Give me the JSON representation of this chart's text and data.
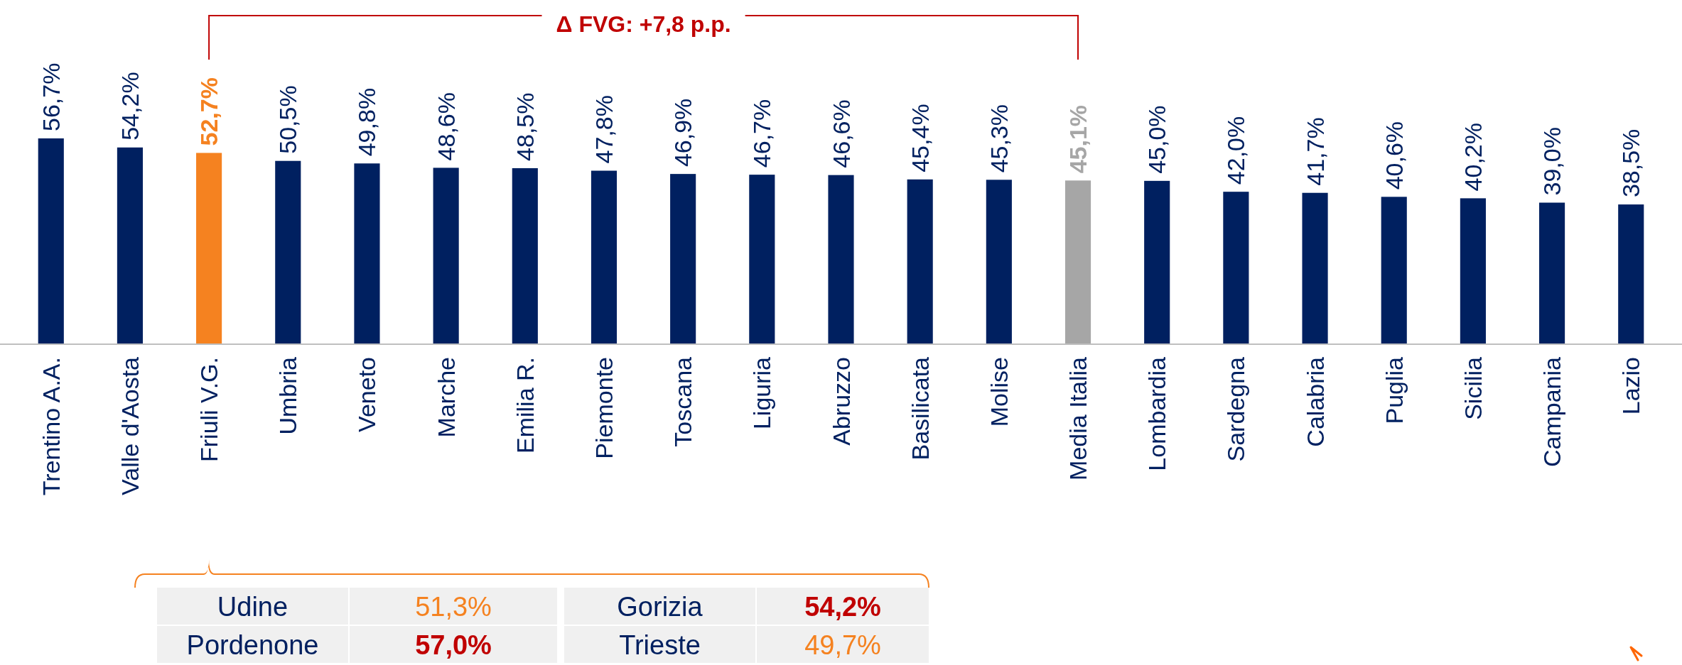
{
  "chart_data": {
    "type": "bar",
    "categories": [
      "Trentino A.A.",
      "Valle d'Aosta",
      "Friuli V.G.",
      "Umbria",
      "Veneto",
      "Marche",
      "Emilia R.",
      "Piemonte",
      "Toscana",
      "Liguria",
      "Abruzzo",
      "Basilicata",
      "Molise",
      "Media Italia",
      "Lombardia",
      "Sardegna",
      "Calabria",
      "Puglia",
      "Sicilia",
      "Campania",
      "Lazio"
    ],
    "values": [
      56.7,
      54.2,
      52.7,
      50.5,
      49.8,
      48.6,
      48.5,
      47.8,
      46.9,
      46.7,
      46.6,
      45.4,
      45.3,
      45.1,
      45.0,
      42.0,
      41.7,
      40.6,
      40.2,
      39.0,
      38.5
    ],
    "value_labels": [
      "56,7%",
      "54,2%",
      "52,7%",
      "50,5%",
      "49,8%",
      "48,6%",
      "48,5%",
      "47,8%",
      "46,9%",
      "46,7%",
      "46,6%",
      "45,4%",
      "45,3%",
      "45,1%",
      "45,0%",
      "42,0%",
      "41,7%",
      "40,6%",
      "40,2%",
      "39,0%",
      "38,5%"
    ],
    "colors": [
      "#002060",
      "#002060",
      "#f58220",
      "#002060",
      "#002060",
      "#002060",
      "#002060",
      "#002060",
      "#002060",
      "#002060",
      "#002060",
      "#002060",
      "#002060",
      "#a6a6a6",
      "#002060",
      "#002060",
      "#002060",
      "#002060",
      "#002060",
      "#002060",
      "#002060"
    ],
    "annotations": [
      "Δ FVG: +7,8 p.p.",
      "Udine",
      "51,3%",
      "Gorizia",
      "54,2%",
      "Pordenone",
      "57,0%",
      "Trieste",
      "49,7%"
    ]
  }
}
